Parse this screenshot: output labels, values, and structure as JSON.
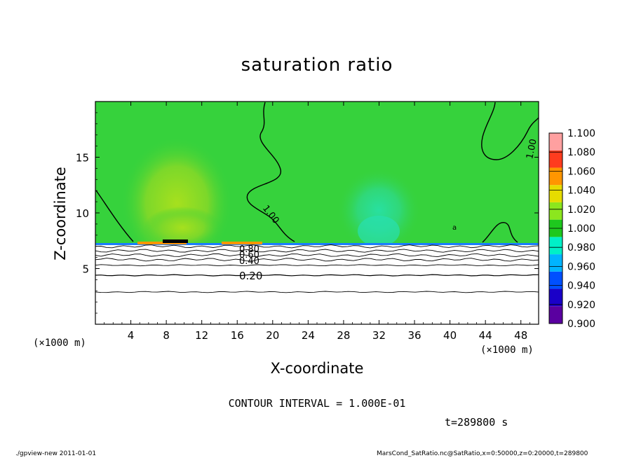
{
  "chart_data": {
    "type": "heatmap",
    "title": "saturation ratio",
    "xlabel": "X-coordinate",
    "ylabel": "Z-coordinate",
    "x_unit": "(×1000 m)",
    "y_unit": "(×1000 m)",
    "xlim": [
      0,
      50
    ],
    "ylim": [
      0,
      20
    ],
    "xticks": [
      4,
      8,
      12,
      16,
      20,
      24,
      28,
      32,
      36,
      40,
      44,
      48
    ],
    "yticks": [
      5,
      10,
      15
    ],
    "contour_interval": "CONTOUR INTERVAL = 1.000E-01",
    "contour_labels": [
      "1.00",
      "1.00",
      "0.80",
      "0.60",
      "0.40",
      "0.20",
      "a"
    ],
    "time": "t=289800 s",
    "colorbar": {
      "levels": [
        0.9,
        0.92,
        0.94,
        0.96,
        0.98,
        1.0,
        1.02,
        1.04,
        1.06,
        1.08,
        1.1
      ],
      "labels": [
        "0.900",
        "0.920",
        "0.940",
        "0.960",
        "0.980",
        "1.000",
        "1.020",
        "1.040",
        "1.060",
        "1.080",
        "1.100"
      ],
      "colors": [
        "#5a00a0",
        "#1a00c8",
        "#0050ff",
        "#00b4ff",
        "#00f0c8",
        "#1ec81e",
        "#8ce61e",
        "#e6dc00",
        "#ff9600",
        "#ff3c1e",
        "#ffa0a0"
      ]
    },
    "field_regions": [
      {
        "region": "z > 7.3",
        "value_range": [
          1.0,
          1.02
        ],
        "description_color": "#36d23c"
      },
      {
        "region": "z < 7.3",
        "value_range": [
          0.0,
          0.9
        ],
        "description_color": "#ffffff"
      }
    ],
    "subsaturated_contours_z": [
      7.0,
      6.6,
      6.2,
      5.8,
      5.3,
      4.4,
      2.9
    ]
  },
  "footer": {
    "left": "./gpview-new   2011-01-01",
    "right": "MarsCond_SatRatio.nc@SatRatio,x=0:50000,z=0:20000,t=289800"
  }
}
